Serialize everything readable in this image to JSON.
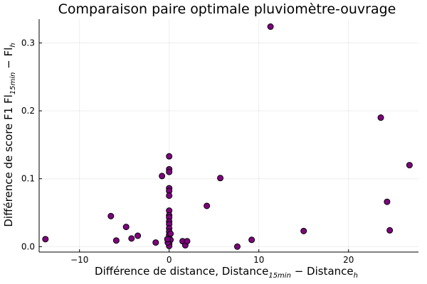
{
  "chart_data": {
    "type": "scatter",
    "title": "Comparaison paire optimale pluviomètre-ouvrage",
    "xlabel": {
      "prefix": "Différence de distance, Distance",
      "sub1": "15min",
      "middle": " − Distance",
      "sub2": "h"
    },
    "ylabel": {
      "prefix": "Différence de score F1  Fl",
      "sub1": "15min",
      "middle": " − Fl",
      "sub2": "h"
    },
    "xlim": [
      -14.5,
      27.8
    ],
    "ylim": [
      -0.008,
      0.335
    ],
    "xticks": [
      -10,
      0,
      10,
      20
    ],
    "yticks": [
      0.0,
      0.1,
      0.2,
      0.3
    ],
    "ytick_labels": [
      "0.0",
      "0.1",
      "0.2",
      "0.3"
    ],
    "grid": true,
    "legend": "none",
    "marker_color": "#800080",
    "points": [
      {
        "x": 11.3,
        "y": 0.324
      },
      {
        "x": 23.6,
        "y": 0.19
      },
      {
        "x": 26.8,
        "y": 0.12
      },
      {
        "x": 24.3,
        "y": 0.066
      },
      {
        "x": 24.6,
        "y": 0.024
      },
      {
        "x": 15.0,
        "y": 0.023
      },
      {
        "x": 9.2,
        "y": 0.01
      },
      {
        "x": 7.6,
        "y": 0.0
      },
      {
        "x": 5.7,
        "y": 0.101
      },
      {
        "x": 4.2,
        "y": 0.06
      },
      {
        "x": 1.5,
        "y": 0.008
      },
      {
        "x": 1.8,
        "y": 0.002
      },
      {
        "x": 2.0,
        "y": 0.008
      },
      {
        "x": -0.8,
        "y": 0.104
      },
      {
        "x": -1.5,
        "y": 0.006
      },
      {
        "x": -3.5,
        "y": 0.016
      },
      {
        "x": -4.2,
        "y": 0.012
      },
      {
        "x": -4.8,
        "y": 0.029
      },
      {
        "x": -5.9,
        "y": 0.009
      },
      {
        "x": -6.5,
        "y": 0.045
      },
      {
        "x": -13.8,
        "y": 0.011
      },
      {
        "x": 0.0,
        "y": 0.133
      },
      {
        "x": 0.0,
        "y": 0.114
      },
      {
        "x": 0.0,
        "y": 0.11
      },
      {
        "x": 0.0,
        "y": 0.086
      },
      {
        "x": 0.0,
        "y": 0.082
      },
      {
        "x": 0.0,
        "y": 0.075
      },
      {
        "x": 0.0,
        "y": 0.053
      },
      {
        "x": 0.0,
        "y": 0.046
      },
      {
        "x": 0.0,
        "y": 0.043
      },
      {
        "x": 0.0,
        "y": 0.037
      },
      {
        "x": 0.0,
        "y": 0.033
      },
      {
        "x": 0.0,
        "y": 0.027
      },
      {
        "x": 0.0,
        "y": 0.022
      },
      {
        "x": 0.0,
        "y": 0.017
      },
      {
        "x": 0.0,
        "y": 0.012
      },
      {
        "x": 0.0,
        "y": 0.008
      },
      {
        "x": 0.0,
        "y": 0.004
      },
      {
        "x": 0.0,
        "y": 0.001
      },
      {
        "x": 0.15,
        "y": 0.01
      },
      {
        "x": 0.15,
        "y": 0.019
      },
      {
        "x": -0.15,
        "y": 0.006
      },
      {
        "x": -0.2,
        "y": 0.011
      }
    ]
  }
}
